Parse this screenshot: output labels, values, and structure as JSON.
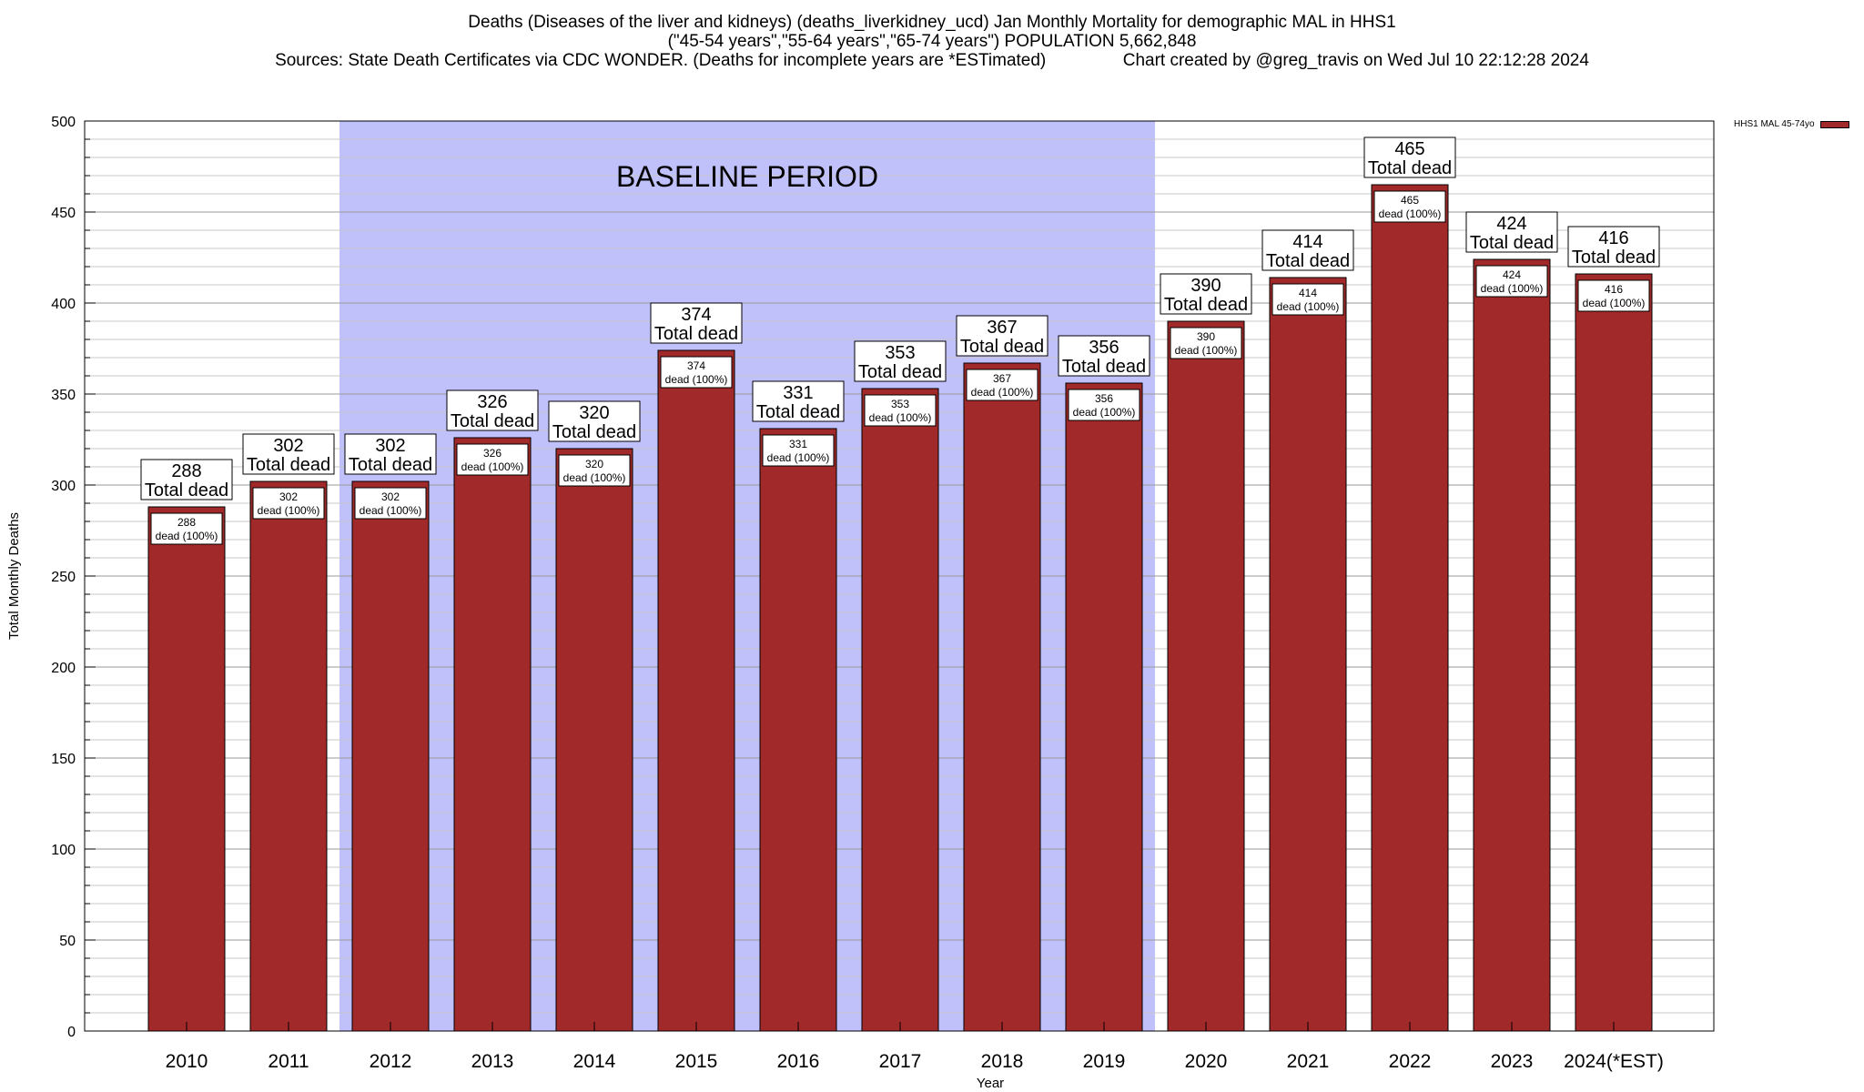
{
  "title": {
    "line1": "Deaths (Diseases of the liver and kidneys) (deaths_liverkidney_ucd) Jan Monthly Mortality for demographic MAL in HHS1",
    "line2": "(\"45-54 years\",\"55-64 years\",\"65-74 years\") POPULATION 5,662,848",
    "line3": "Sources: State Death Certificates via CDC WONDER. (Deaths for incomplete years are *ESTimated)                Chart created by @greg_travis on Wed Jul 10 22:12:28 2024"
  },
  "legend": {
    "label": "HHS1 MAL 45-74yo",
    "color": "#a1292a"
  },
  "colors": {
    "bar": "#a1292a",
    "baseline": "#c0c0fb"
  },
  "chart_data": {
    "type": "bar",
    "xlabel": "Year",
    "ylabel": "Total Monthly Deaths",
    "ylim": [
      0,
      500
    ],
    "yticks": [
      0,
      50,
      100,
      150,
      200,
      250,
      300,
      350,
      400,
      450,
      500
    ],
    "grid": true,
    "legend_position": "top-right",
    "categories": [
      "2010",
      "2011",
      "2012",
      "2013",
      "2014",
      "2015",
      "2016",
      "2017",
      "2018",
      "2019",
      "2020",
      "2021",
      "2022",
      "2023",
      "2024(*EST)"
    ],
    "series": [
      {
        "name": "HHS1 MAL 45-74yo",
        "values": [
          288,
          302,
          302,
          326,
          320,
          374,
          331,
          353,
          367,
          356,
          390,
          414,
          465,
          424,
          416
        ]
      }
    ],
    "top_label_suffix": "Total dead",
    "inner_label_suffix": "dead (100%)",
    "baseline": {
      "label": "BASELINE PERIOD",
      "from": "2012",
      "to": "2019"
    }
  }
}
